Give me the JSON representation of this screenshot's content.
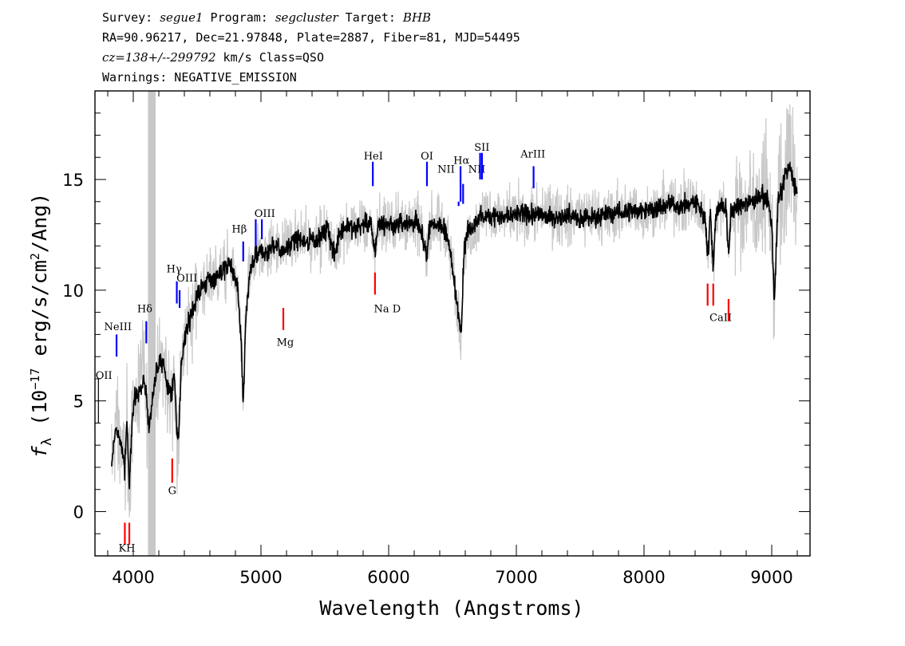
{
  "header": {
    "survey_label": "Survey:",
    "survey": "segue1",
    "program_label": "Program:",
    "program": "segcluster",
    "target_label": "Target:",
    "target": "BHB",
    "line2": "RA=90.96217, Dec=21.97848, Plate=2887, Fiber=81, MJD=54495",
    "cz": "cz=138+/--299792",
    "line3_rest": " km/s Class=QSO",
    "line4": "Warnings: NEGATIVE_EMISSION"
  },
  "chart_data": {
    "type": "line",
    "xlabel": "Wavelength (Angstroms)",
    "ylabel": "fλ (10⁻¹⁷ erg/s/cm²/Ang)",
    "xlim": [
      3700,
      9300
    ],
    "ylim": [
      -2,
      19
    ],
    "x_ticks": [
      4000,
      5000,
      6000,
      7000,
      8000,
      9000
    ],
    "y_ticks": [
      0,
      5,
      10,
      15
    ],
    "masked_band": [
      4115,
      4175
    ],
    "series": [
      {
        "style": "smoothed flux (black)",
        "x": [
          3830,
          3860,
          3880,
          3900,
          3920,
          3933,
          3950,
          3968,
          3990,
          4010,
          4050,
          4080,
          4102,
          4120,
          4150,
          4190,
          4230,
          4270,
          4300,
          4320,
          4340,
          4355,
          4380,
          4420,
          4470,
          4520,
          4580,
          4640,
          4700,
          4760,
          4820,
          4845,
          4861,
          4880,
          4910,
          4960,
          5007,
          5050,
          5100,
          5170,
          5230,
          5290,
          5350,
          5400,
          5470,
          5520,
          5577,
          5620,
          5680,
          5740,
          5800,
          5860,
          5893,
          5920,
          5980,
          6040,
          6100,
          6160,
          6220,
          6260,
          6300,
          6320,
          6360,
          6400,
          6450,
          6500,
          6530,
          6560,
          6570,
          6590,
          6620,
          6660,
          6700,
          6760,
          6820,
          6880,
          6940,
          7000,
          7100,
          7200,
          7300,
          7400,
          7500,
          7600,
          7700,
          7800,
          7900,
          8000,
          8100,
          8200,
          8300,
          8400,
          8480,
          8500,
          8520,
          8542,
          8560,
          8580,
          8600,
          8640,
          8662,
          8680,
          8720,
          8780,
          8850,
          8900,
          8960,
          9000,
          9020,
          9050,
          9080,
          9110,
          9140,
          9170,
          9200
        ],
        "y": [
          2.0,
          3.8,
          3.5,
          3.2,
          2.5,
          1.8,
          4.2,
          0.8,
          4.3,
          5.0,
          5.5,
          6.0,
          5.2,
          3.6,
          5.2,
          6.5,
          6.8,
          5.6,
          5.2,
          6.5,
          3.6,
          3.5,
          7.0,
          8.2,
          9.3,
          10.0,
          10.4,
          10.6,
          10.9,
          11.2,
          10.0,
          7.5,
          4.8,
          8.5,
          10.7,
          11.5,
          11.8,
          11.6,
          12.1,
          11.8,
          12.1,
          12.3,
          12.2,
          12.3,
          12.4,
          12.8,
          11.5,
          12.7,
          12.9,
          12.8,
          13.0,
          12.9,
          11.8,
          13.0,
          13.0,
          12.9,
          13.1,
          13.0,
          13.1,
          12.5,
          11.5,
          13.0,
          13.0,
          12.9,
          12.7,
          11.0,
          9.5,
          8.5,
          8.3,
          11.8,
          12.6,
          12.8,
          13.2,
          13.4,
          13.4,
          13.3,
          13.3,
          13.4,
          13.4,
          13.4,
          13.3,
          13.4,
          13.3,
          13.3,
          13.4,
          13.5,
          13.6,
          13.6,
          13.7,
          13.9,
          13.8,
          14.0,
          13.2,
          11.5,
          13.5,
          11.0,
          13.3,
          13.6,
          13.9,
          13.8,
          11.5,
          13.5,
          13.7,
          13.9,
          14.0,
          14.1,
          14.3,
          13.0,
          9.5,
          14.0,
          14.5,
          15.2,
          15.6,
          15.0,
          14.3
        ]
      }
    ],
    "line_markers": [
      {
        "label": "OII",
        "x": 3727,
        "color": "#000000"
      },
      {
        "label": "NeIII",
        "x": 3869,
        "color": "#0000ff"
      },
      {
        "label": "K",
        "x": 3934,
        "color": "#ff0000"
      },
      {
        "label": "H",
        "x": 3969,
        "color": "#ff0000"
      },
      {
        "label": "Hδ",
        "x": 4102,
        "color": "#0000ff"
      },
      {
        "label": "G",
        "x": 4305,
        "color": "#ff0000"
      },
      {
        "label": "Hγ",
        "x": 4341,
        "color": "#0000ff"
      },
      {
        "label": "OIII",
        "x": 4363,
        "color": "#0000ff"
      },
      {
        "label": "Hβ",
        "x": 4861,
        "color": "#0000ff"
      },
      {
        "label": "OIII",
        "x": 4959,
        "color": "#0000ff"
      },
      {
        "label": "OIII",
        "x": 5007,
        "color": "#0000ff"
      },
      {
        "label": "Mg",
        "x": 5175,
        "color": "#ff0000"
      },
      {
        "label": "HeI",
        "x": 5876,
        "color": "#0000ff"
      },
      {
        "label": "Na D",
        "x": 5893,
        "color": "#ff0000"
      },
      {
        "label": "OI",
        "x": 6300,
        "color": "#0000ff"
      },
      {
        "label": "NII",
        "x": 6548,
        "color": "#0000ff"
      },
      {
        "label": "Hα",
        "x": 6563,
        "color": "#0000ff"
      },
      {
        "label": "NII",
        "x": 6583,
        "color": "#0000ff"
      },
      {
        "label": "SII",
        "x": 6716,
        "color": "#0000ff"
      },
      {
        "label": "SII",
        "x": 6731,
        "color": "#0000ff"
      },
      {
        "label": "ArIII",
        "x": 7135,
        "color": "#0000ff"
      },
      {
        "label": "CaII",
        "x": 8498,
        "color": "#ff0000"
      },
      {
        "label": "CaII",
        "x": 8542,
        "color": "#ff0000"
      },
      {
        "label": "CaII",
        "x": 8662,
        "color": "#ff0000"
      }
    ],
    "colors": {
      "flux": "#000000",
      "error_band": "#c8c8c8",
      "emission": "#0000ff",
      "absorption": "#ff0000"
    }
  }
}
